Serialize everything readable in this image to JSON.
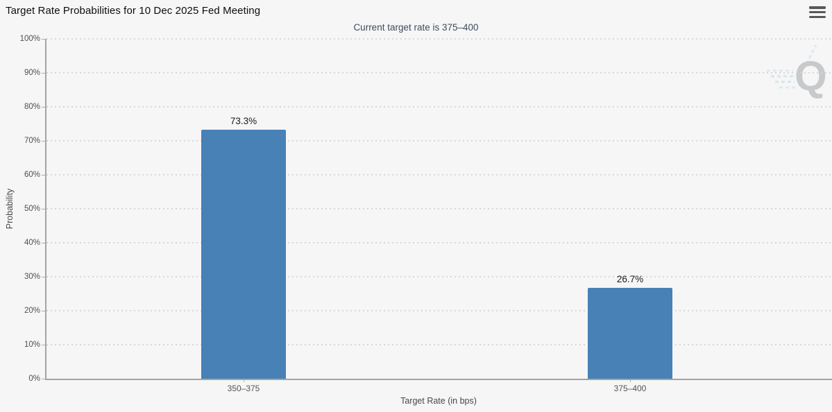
{
  "header": {
    "title": "Target Rate Probabilities for 10 Dec 2025 Fed Meeting"
  },
  "menu": {
    "icon": "hamburger-icon"
  },
  "watermark": {
    "letter": "Q",
    "name": "quikstrike-logo"
  },
  "chart_data": {
    "type": "bar",
    "title": "Current target rate is 375–400",
    "categories": [
      "350–375",
      "375–400"
    ],
    "values": [
      73.3,
      26.7
    ],
    "value_labels": [
      "73.3%",
      "26.7%"
    ],
    "xlabel": "Target Rate (in bps)",
    "ylabel": "Probability",
    "ylim": [
      0,
      100
    ],
    "yticks": [
      "0%",
      "10%",
      "20%",
      "30%",
      "40%",
      "50%",
      "60%",
      "70%",
      "80%",
      "90%",
      "100%"
    ],
    "grid": "horizontal-dotted",
    "legend": "none",
    "bar_color": "#4781b6",
    "grid_color": "#d7d7d7",
    "axis_color": "#a3a3a3",
    "background_color": "#f6f6f7"
  }
}
